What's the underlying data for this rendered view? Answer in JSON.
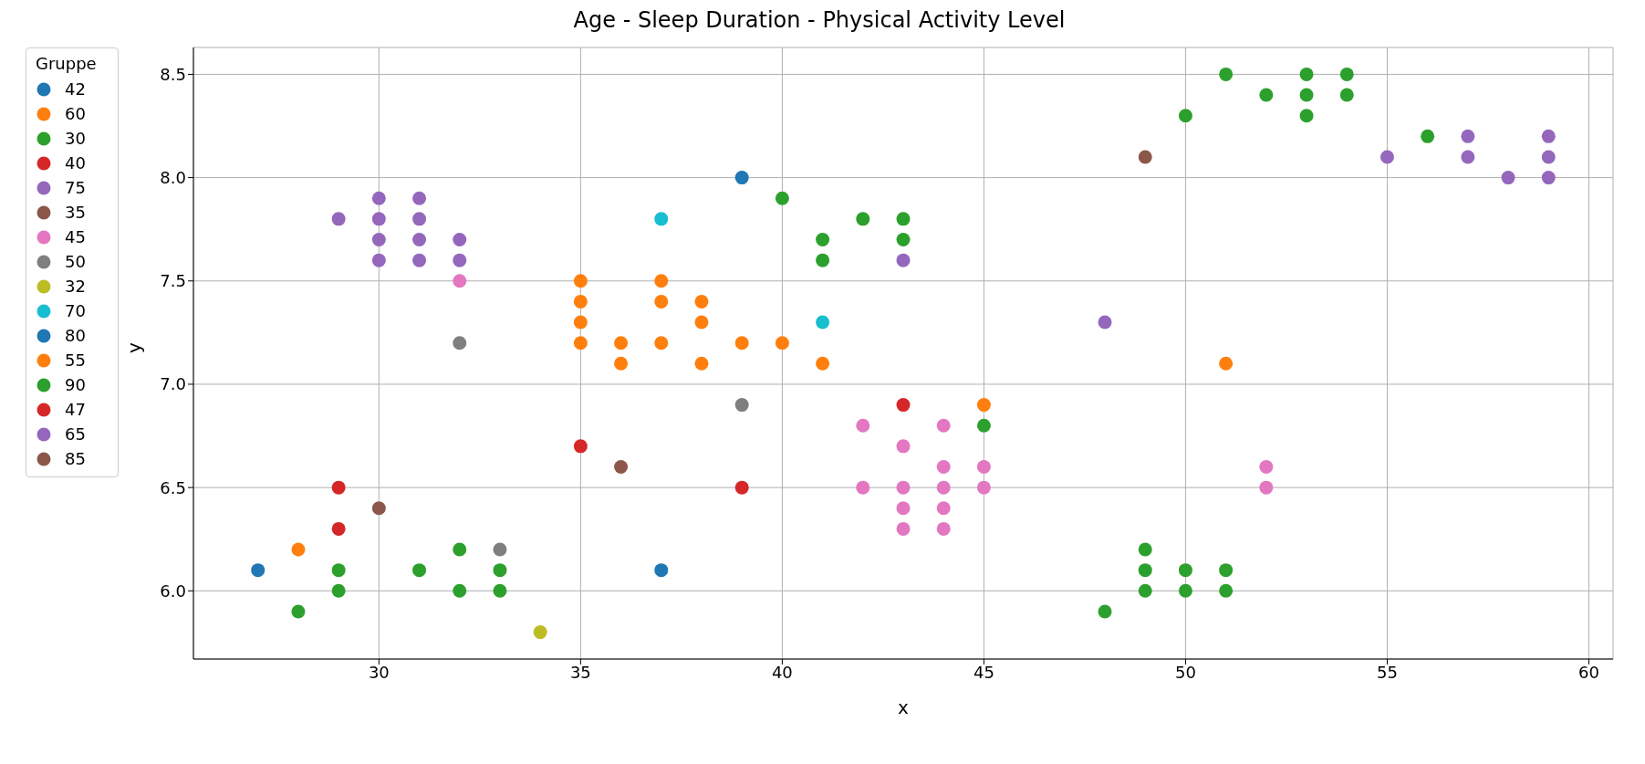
{
  "chart_data": {
    "type": "scatter",
    "title": "Age - Sleep Duration - Physical Activity Level",
    "xlabel": "x",
    "ylabel": "y",
    "legend_title": "Gruppe",
    "legend": "left",
    "grid": true,
    "marker": "circle",
    "xlim": [
      25.4,
      60.6
    ],
    "xticks": [
      30,
      35,
      40,
      45,
      50,
      55,
      60
    ],
    "ylim": [
      5.67,
      8.63
    ],
    "yticks": [
      {
        "value": 6,
        "label": "6.0"
      },
      {
        "value": 6.5,
        "label": "6.5"
      },
      {
        "value": 7,
        "label": "7.0"
      },
      {
        "value": 7.5,
        "label": "7.5"
      },
      {
        "value": 8,
        "label": "8.0"
      },
      {
        "value": 8.5,
        "label": "8.5"
      }
    ],
    "series": [
      {
        "name": "42",
        "color": "#1f77b4",
        "x": [
          37
        ],
        "values": [
          6.1
        ]
      },
      {
        "name": "60",
        "color": "#ff7f0e",
        "x": [
          35,
          35,
          35,
          35,
          36,
          36,
          37,
          37,
          37,
          38,
          38,
          38,
          39,
          40,
          41
        ],
        "values": [
          7.5,
          7.4,
          7.3,
          7.2,
          7.2,
          7.1,
          7.5,
          7.4,
          7.2,
          7.4,
          7.3,
          7.1,
          7.2,
          7.2,
          7.1
        ]
      },
      {
        "name": "30",
        "color": "#2ca02c",
        "x": [
          28,
          29,
          29,
          31,
          32,
          32,
          33,
          33,
          48,
          49,
          49,
          49,
          50,
          50,
          51,
          51
        ],
        "values": [
          5.9,
          6.1,
          6.0,
          6.1,
          6.2,
          6.0,
          6.1,
          6.0,
          5.9,
          6.2,
          6.1,
          6.0,
          6.1,
          6.0,
          6.1,
          6.0
        ]
      },
      {
        "name": "40",
        "color": "#d62728",
        "x": [
          29,
          29,
          35
        ],
        "values": [
          6.5,
          6.3,
          6.7
        ]
      },
      {
        "name": "75",
        "color": "#9467bd",
        "x": [
          29,
          30,
          30,
          30,
          30,
          31,
          31,
          31,
          31,
          32,
          32,
          43
        ],
        "values": [
          7.8,
          7.9,
          7.8,
          7.7,
          7.6,
          7.9,
          7.8,
          7.7,
          7.6,
          7.7,
          7.6,
          7.6
        ]
      },
      {
        "name": "35",
        "color": "#8c564b",
        "x": [
          30,
          36
        ],
        "values": [
          6.4,
          6.6
        ]
      },
      {
        "name": "45",
        "color": "#e377c2",
        "x": [
          32,
          42,
          42,
          43,
          43,
          43,
          43,
          44,
          44,
          44,
          44,
          44,
          45,
          45,
          52,
          52
        ],
        "values": [
          7.5,
          6.8,
          6.5,
          6.7,
          6.5,
          6.4,
          6.3,
          6.8,
          6.6,
          6.5,
          6.4,
          6.3,
          6.6,
          6.5,
          6.6,
          6.5
        ]
      },
      {
        "name": "50",
        "color": "#7f7f7f",
        "x": [
          32,
          33,
          39
        ],
        "values": [
          7.2,
          6.2,
          6.9
        ]
      },
      {
        "name": "32",
        "color": "#bcbd22",
        "x": [
          34
        ],
        "values": [
          5.8
        ]
      },
      {
        "name": "70",
        "color": "#17becf",
        "x": [
          37,
          41
        ],
        "values": [
          7.8,
          7.3
        ]
      },
      {
        "name": "80",
        "color": "#1f77b4",
        "x": [
          27,
          39
        ],
        "values": [
          6.1,
          8.0
        ]
      },
      {
        "name": "55",
        "color": "#ff7f0e",
        "x": [
          28,
          45,
          51
        ],
        "values": [
          6.2,
          6.9,
          7.1
        ]
      },
      {
        "name": "90",
        "color": "#2ca02c",
        "x": [
          40,
          41,
          41,
          42,
          43,
          43,
          45,
          50,
          51,
          52,
          53,
          53,
          53,
          54,
          54,
          56
        ],
        "values": [
          7.9,
          7.7,
          7.6,
          7.8,
          7.8,
          7.7,
          6.8,
          8.3,
          8.5,
          8.4,
          8.5,
          8.4,
          8.3,
          8.5,
          8.4,
          8.2
        ]
      },
      {
        "name": "47",
        "color": "#d62728",
        "x": [
          39,
          43
        ],
        "values": [
          6.5,
          6.9
        ]
      },
      {
        "name": "65",
        "color": "#9467bd",
        "x": [
          48,
          55,
          57,
          57,
          58,
          59,
          59,
          59
        ],
        "values": [
          7.3,
          8.1,
          8.2,
          8.1,
          8.0,
          8.2,
          8.1,
          8.0
        ]
      },
      {
        "name": "85",
        "color": "#8c564b",
        "x": [
          49
        ],
        "values": [
          8.1
        ]
      }
    ]
  }
}
